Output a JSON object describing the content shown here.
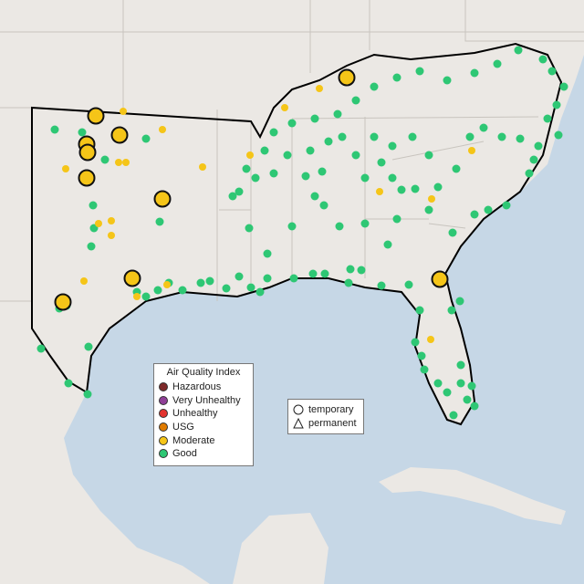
{
  "legend": {
    "title": "Air Quality Index",
    "items": [
      {
        "label": "Hazardous",
        "color": "#7e2a2a"
      },
      {
        "label": "Very Unhealthy",
        "color": "#8f3f97"
      },
      {
        "label": "Unhealthy",
        "color": "#e3342f"
      },
      {
        "label": "USG",
        "color": "#e07b00"
      },
      {
        "label": "Moderate",
        "color": "#f5c518"
      },
      {
        "label": "Good",
        "color": "#2ec774"
      }
    ]
  },
  "shape_legend": {
    "items": [
      {
        "label": "temporary"
      },
      {
        "label": "permanent"
      }
    ]
  }
}
